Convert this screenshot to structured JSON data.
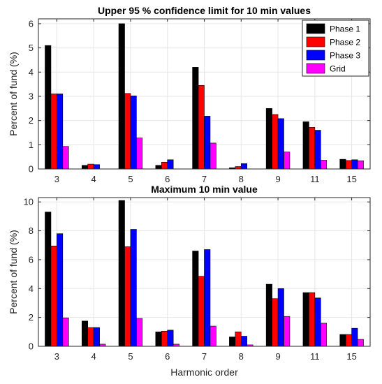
{
  "chart_data": [
    {
      "type": "bar",
      "title": "Upper 95 % confidence limit for 10 min values",
      "xlabel": "",
      "ylabel": "Percent of fund (%)",
      "categories": [
        "3",
        "4",
        "5",
        "6",
        "7",
        "8",
        "9",
        "11",
        "15"
      ],
      "ylim": [
        0,
        6.2
      ],
      "yticks": [
        0,
        1,
        2,
        3,
        4,
        5,
        6
      ],
      "grid": true,
      "legend_position": "top-right",
      "series": [
        {
          "name": "Phase 1",
          "color": "#000000",
          "values": [
            5.1,
            0.15,
            6.0,
            0.15,
            4.2,
            0.05,
            2.5,
            1.95,
            0.4
          ]
        },
        {
          "name": "Phase 2",
          "color": "#ff0000",
          "values": [
            3.1,
            0.2,
            3.12,
            0.28,
            3.45,
            0.1,
            2.25,
            1.72,
            0.35
          ]
        },
        {
          "name": "Phase 3",
          "color": "#0000ff",
          "values": [
            3.1,
            0.18,
            3.02,
            0.38,
            2.18,
            0.22,
            2.08,
            1.6,
            0.38
          ]
        },
        {
          "name": "Grid",
          "color": "#ff00ff",
          "values": [
            0.93,
            0.0,
            1.28,
            0.0,
            1.07,
            0.0,
            0.7,
            0.36,
            0.34
          ]
        }
      ]
    },
    {
      "type": "bar",
      "title": "Maximum 10 min value",
      "xlabel": "Harmonic order",
      "ylabel": "Percent of fund (%)",
      "categories": [
        "3",
        "4",
        "5",
        "6",
        "7",
        "8",
        "9",
        "11",
        "15"
      ],
      "ylim": [
        0,
        10.3
      ],
      "yticks": [
        0,
        2,
        4,
        6,
        8,
        10
      ],
      "grid": true,
      "series": [
        {
          "name": "Phase 1",
          "color": "#000000",
          "values": [
            9.3,
            1.75,
            10.1,
            1.0,
            6.6,
            0.65,
            4.3,
            3.72,
            0.82
          ]
        },
        {
          "name": "Phase 2",
          "color": "#ff0000",
          "values": [
            6.95,
            1.3,
            6.9,
            1.05,
            4.85,
            1.0,
            3.3,
            3.72,
            0.82
          ]
        },
        {
          "name": "Phase 3",
          "color": "#0000ff",
          "values": [
            7.8,
            1.3,
            8.1,
            1.12,
            6.7,
            0.7,
            4.0,
            3.35,
            1.25
          ]
        },
        {
          "name": "Grid",
          "color": "#ff00ff",
          "values": [
            1.97,
            0.15,
            1.93,
            0.15,
            1.4,
            0.1,
            2.07,
            1.6,
            0.48
          ]
        }
      ]
    }
  ]
}
